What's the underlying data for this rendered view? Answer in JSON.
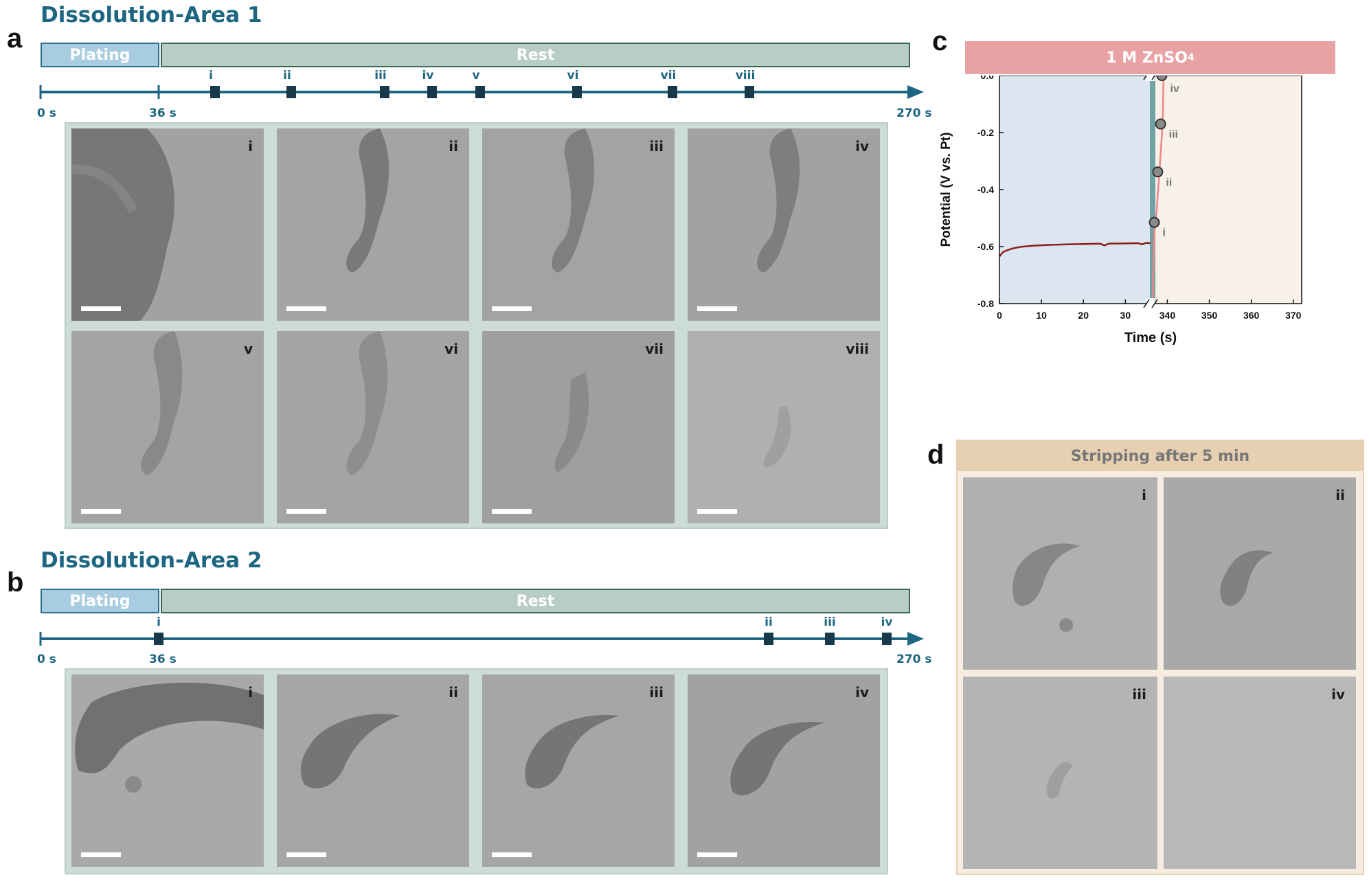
{
  "panel_a": {
    "letter": "a",
    "title": "Dissolution-Area 1",
    "plating_label": "Plating",
    "rest_label": "Rest",
    "time_start": "0 s",
    "time_mid": "36 s",
    "time_end": "270 s",
    "markers": [
      "i",
      "ii",
      "iii",
      "iv",
      "v",
      "vi",
      "vii",
      "viii"
    ],
    "tiles": [
      "i",
      "ii",
      "iii",
      "iv",
      "v",
      "vi",
      "vii",
      "viii"
    ]
  },
  "panel_b": {
    "letter": "b",
    "title": "Dissolution-Area 2",
    "plating_label": "Plating",
    "rest_label": "Rest",
    "time_start": "0 s",
    "time_mid": "36 s",
    "time_end": "270 s",
    "markers": [
      "i",
      "ii",
      "iii",
      "iv"
    ],
    "tiles": [
      "i",
      "ii",
      "iii",
      "iv"
    ]
  },
  "panel_c": {
    "letter": "c",
    "title_main": "1 M ZnSO",
    "title_sub": "4"
  },
  "panel_d": {
    "letter": "d",
    "title": "Stripping after 5 min",
    "tiles": [
      "i",
      "ii",
      "iii",
      "iv"
    ]
  },
  "chart_data": {
    "type": "line",
    "title": "1 M ZnSO4",
    "xlabel": "Time (s)",
    "ylabel": "Potential (V vs. Pt)",
    "x_ticks_left": [
      0,
      10,
      20,
      30
    ],
    "x_ticks_right": [
      340,
      350,
      360,
      370
    ],
    "y_ticks": [
      "0.0",
      "-0.2",
      "-0.4",
      "-0.6",
      "-0.8"
    ],
    "xlim_left": [
      0,
      36
    ],
    "xlim_right": [
      336,
      372
    ],
    "ylim": [
      -0.8,
      0.0
    ],
    "axis_break": true,
    "grid": false,
    "colors": {
      "plating_bg": "#dce6f1",
      "rest_bg": "#f7f1e9",
      "plating_line": "#8b1d1d",
      "rest_line": "#f2868a",
      "divider": "#6fa3a6"
    },
    "series": [
      {
        "x": [
          0,
          0.5,
          1,
          2,
          3,
          5,
          8,
          12,
          16,
          20,
          24,
          25,
          26,
          30,
          33,
          34,
          35,
          36
        ],
        "y": [
          -0.635,
          -0.625,
          -0.618,
          -0.612,
          -0.607,
          -0.601,
          -0.597,
          -0.594,
          -0.592,
          -0.591,
          -0.59,
          -0.596,
          -0.59,
          -0.589,
          -0.588,
          -0.592,
          -0.587,
          -0.588
        ]
      },
      {
        "x": [
          336.5,
          336.9,
          337.3,
          337.7,
          338.1,
          338.5,
          338.9,
          339.1
        ],
        "y": [
          -0.8,
          -0.55,
          -0.51,
          -0.42,
          -0.34,
          -0.25,
          -0.17,
          0.0
        ]
      }
    ],
    "annotations": [
      {
        "label": "i",
        "x": 336.9,
        "y": -0.515
      },
      {
        "label": "ii",
        "x": 337.7,
        "y": -0.338
      },
      {
        "label": "iii",
        "x": 338.4,
        "y": -0.17
      },
      {
        "label": "iv",
        "x": 338.7,
        "y": 0.0
      }
    ]
  }
}
